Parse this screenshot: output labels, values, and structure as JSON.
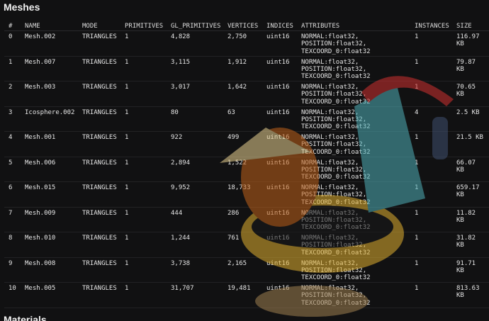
{
  "title": "Meshes",
  "next_section": "Materials",
  "columns": [
    "#",
    "NAME",
    "MODE",
    "PRIMITIVES",
    "GL_PRIMITIVES",
    "VERTICES",
    "INDICES",
    "ATTRIBUTES",
    "INSTANCES",
    "SIZE"
  ],
  "rows": [
    [
      "0",
      "Mesh.002",
      "TRIANGLES",
      "1",
      "4,828",
      "2,750",
      "uint16",
      "NORMAL:float32,\nPOSITION:float32,\nTEXCOORD_0:float32",
      "1",
      "116.97\nKB"
    ],
    [
      "1",
      "Mesh.007",
      "TRIANGLES",
      "1",
      "3,115",
      "1,912",
      "uint16",
      "NORMAL:float32,\nPOSITION:float32,\nTEXCOORD_0:float32",
      "1",
      "79.87\nKB"
    ],
    [
      "2",
      "Mesh.003",
      "TRIANGLES",
      "1",
      "3,017",
      "1,642",
      "uint16",
      "NORMAL:float32,\nPOSITION:float32,\nTEXCOORD_0:float32",
      "1",
      "70.65\nKB"
    ],
    [
      "3",
      "Icosphere.002",
      "TRIANGLES",
      "1",
      "80",
      "63",
      "uint16",
      "NORMAL:float32,\nPOSITION:float32,\nTEXCOORD_0:float32",
      "4",
      "2.5 KB"
    ],
    [
      "4",
      "Mesh.001",
      "TRIANGLES",
      "1",
      "922",
      "499",
      "uint16",
      "NORMAL:float32,\nPOSITION:float32,\nTEXCOORD_0:float32",
      "1",
      "21.5 KB"
    ],
    [
      "5",
      "Mesh.006",
      "TRIANGLES",
      "1",
      "2,894",
      "1,522",
      "uint16",
      "NORMAL:float32,\nPOSITION:float32,\nTEXCOORD_0:float32",
      "1",
      "66.07\nKB"
    ],
    [
      "6",
      "Mesh.015",
      "TRIANGLES",
      "1",
      "9,952",
      "18,733",
      "uint16",
      "NORMAL:float32,\nPOSITION:float32,\nTEXCOORD_0:float32",
      "1",
      "659.17\nKB"
    ],
    [
      "7",
      "Mesh.009",
      "TRIANGLES",
      "1",
      "444",
      "286",
      "uint16",
      "NORMAL:float32,\nPOSITION:float32,\nTEXCOORD_0:float32",
      "1",
      "11.82\nKB"
    ],
    [
      "8",
      "Mesh.010",
      "TRIANGLES",
      "1",
      "1,244",
      "761",
      "uint16",
      "NORMAL:float32,\nPOSITION:float32,\nTEXCOORD_0:float32",
      "1",
      "31.82\nKB"
    ],
    [
      "9",
      "Mesh.008",
      "TRIANGLES",
      "1",
      "3,738",
      "2,165",
      "uint16",
      "NORMAL:float32,\nPOSITION:float32,\nTEXCOORD_0:float32",
      "1",
      "91.71\nKB"
    ],
    [
      "10",
      "Mesh.005",
      "TRIANGLES",
      "1",
      "31,707",
      "19,481",
      "uint16",
      "NORMAL:float32,\nPOSITION:float32,\nTEXCOORD_0:float32",
      "1",
      "813.63\nKB"
    ]
  ]
}
